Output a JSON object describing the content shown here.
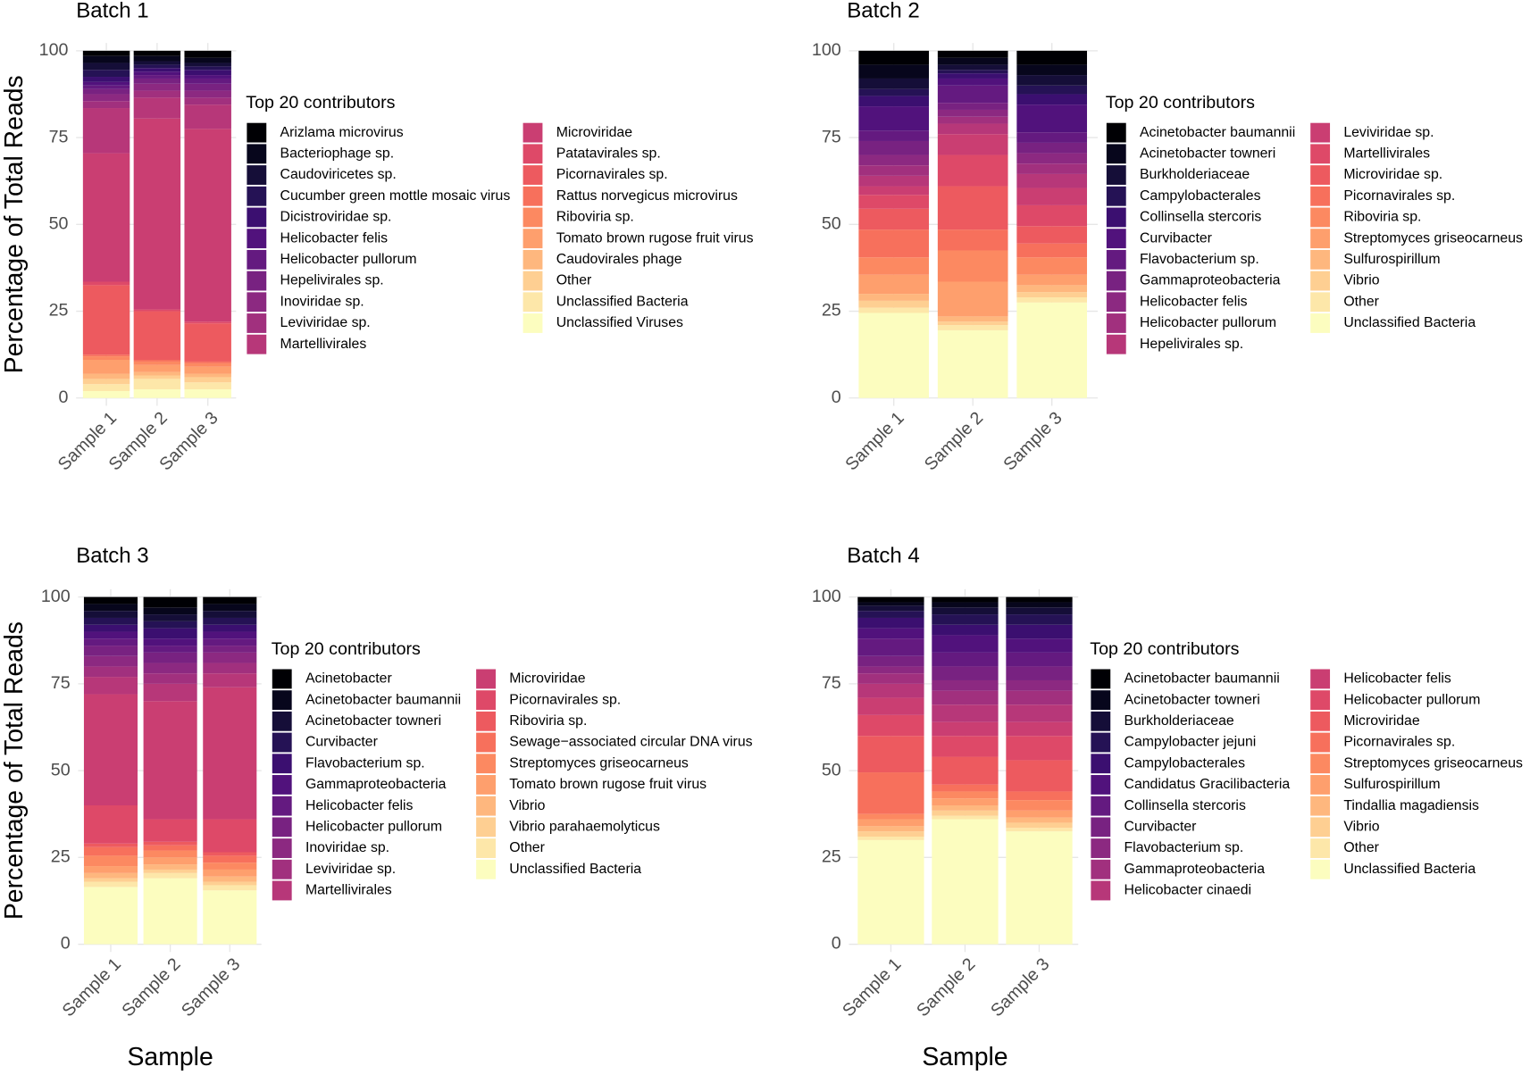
{
  "chart_data": [
    {
      "type": "bar",
      "stacked": true,
      "title": "Batch 1",
      "ylabel": "Percentage of Total Reads",
      "legend_title": "Top 20 contributors",
      "legend": "right",
      "categories": [
        "Sample 1",
        "Sample 2",
        "Sample 3"
      ],
      "ylim": [
        0,
        100
      ],
      "yticks": [
        0,
        25,
        50,
        75,
        100
      ],
      "grid": true,
      "series": [
        {
          "name": "Arizlama microvirus",
          "color": "#000004",
          "values": [
            1.5,
            1.5,
            2
          ]
        },
        {
          "name": "Bacteriophage sp.",
          "color": "#07061c",
          "values": [
            2,
            1.5,
            1.5
          ]
        },
        {
          "name": "Caudoviricetes sp.",
          "color": "#150e38",
          "values": [
            2,
            1,
            1
          ]
        },
        {
          "name": "Cucumber green mottle mosaic virus",
          "color": "#251255",
          "values": [
            2,
            1,
            1
          ]
        },
        {
          "name": "Dicistroviridae sp.",
          "color": "#3b0f70",
          "values": [
            1.5,
            1,
            1.5
          ]
        },
        {
          "name": "Helicobacter felis",
          "color": "#51127c",
          "values": [
            1,
            1,
            1
          ]
        },
        {
          "name": "Helicobacter pullorum",
          "color": "#641a80",
          "values": [
            1,
            1,
            1.5
          ]
        },
        {
          "name": "Hepelivirales sp.",
          "color": "#782281",
          "values": [
            1.5,
            1.5,
            2
          ]
        },
        {
          "name": "Inoviridae sp.",
          "color": "#8c2981",
          "values": [
            2,
            2,
            2
          ]
        },
        {
          "name": "Leviviridae sp.",
          "color": "#a1307e",
          "values": [
            2,
            2,
            2
          ]
        },
        {
          "name": "Martellivirales",
          "color": "#b73779",
          "values": [
            13,
            6,
            7
          ]
        },
        {
          "name": "Microviridae",
          "color": "#ca3e72",
          "values": [
            37,
            55,
            55.5
          ]
        },
        {
          "name": "Patatavirales sp.",
          "color": "#de4968",
          "values": [
            1,
            0.5,
            0.5
          ]
        },
        {
          "name": "Picornavirales sp.",
          "color": "#ed5a5f",
          "values": [
            20,
            14,
            11
          ]
        },
        {
          "name": "Rattus norvegicus microvirus",
          "color": "#f7705c",
          "values": [
            0.5,
            0.5,
            0.5
          ]
        },
        {
          "name": "Riboviria sp.",
          "color": "#fc8961",
          "values": [
            1,
            1,
            1
          ]
        },
        {
          "name": "Tomato brown rugose fruit virus",
          "color": "#fe9f6d",
          "values": [
            4,
            2,
            2
          ]
        },
        {
          "name": "Caudovirales phage",
          "color": "#feb77e",
          "values": [
            1.5,
            1,
            1
          ]
        },
        {
          "name": "Other",
          "color": "#fecf92",
          "values": [
            1.5,
            1,
            1.5
          ]
        },
        {
          "name": "Unclassified Bacteria",
          "color": "#fde7a9",
          "values": [
            2,
            3,
            2
          ]
        },
        {
          "name": "Unclassified Viruses",
          "color": "#fcfdbf",
          "values": [
            2,
            2.5,
            2.5
          ]
        }
      ]
    },
    {
      "type": "bar",
      "stacked": true,
      "title": "Batch 2",
      "legend_title": "Top 20 contributors",
      "legend": "right",
      "categories": [
        "Sample 1",
        "Sample 2",
        "Sample 3"
      ],
      "ylim": [
        0,
        100
      ],
      "yticks": [
        0,
        25,
        50,
        75,
        100
      ],
      "grid": true,
      "series": [
        {
          "name": "Acinetobacter baumannii",
          "color": "#000004",
          "values": [
            4,
            2,
            4
          ]
        },
        {
          "name": "Acinetobacter towneri",
          "color": "#07061c",
          "values": [
            4,
            2,
            3
          ]
        },
        {
          "name": "Burkholderiaceae",
          "color": "#150e38",
          "values": [
            3,
            1.5,
            3
          ]
        },
        {
          "name": "Campylobacterales",
          "color": "#251255",
          "values": [
            2,
            1,
            2.5
          ]
        },
        {
          "name": "Collinsella stercoris",
          "color": "#3b0f70",
          "values": [
            3,
            1.5,
            3
          ]
        },
        {
          "name": "Curvibacter",
          "color": "#51127c",
          "values": [
            7,
            2,
            8
          ]
        },
        {
          "name": "Flavobacterium sp.",
          "color": "#641a80",
          "values": [
            3,
            5,
            3
          ]
        },
        {
          "name": "Gammaproteobacteria",
          "color": "#782281",
          "values": [
            4,
            2,
            3
          ]
        },
        {
          "name": "Helicobacter felis",
          "color": "#8c2981",
          "values": [
            3,
            2,
            3
          ]
        },
        {
          "name": "Helicobacter pullorum",
          "color": "#a1307e",
          "values": [
            3,
            2,
            3
          ]
        },
        {
          "name": "Hepelivirales sp.",
          "color": "#b73779",
          "values": [
            3,
            3,
            4
          ]
        },
        {
          "name": "Leviviridae sp.",
          "color": "#ca3e72",
          "values": [
            2.5,
            6,
            5
          ]
        },
        {
          "name": "Martellivirales",
          "color": "#de4968",
          "values": [
            4,
            9,
            6
          ]
        },
        {
          "name": "Microviridae sp.",
          "color": "#ed5a5f",
          "values": [
            6,
            12.5,
            5
          ]
        },
        {
          "name": "Picornavirales sp.",
          "color": "#f7705c",
          "values": [
            8,
            6,
            4
          ]
        },
        {
          "name": "Riboviria sp.",
          "color": "#fc8961",
          "values": [
            5,
            9,
            5
          ]
        },
        {
          "name": "Streptomyces griseocarneus",
          "color": "#fe9f6d",
          "values": [
            5.5,
            10,
            3
          ]
        },
        {
          "name": "Sulfurospirillum",
          "color": "#feb77e",
          "values": [
            2,
            1.5,
            2
          ]
        },
        {
          "name": "Vibrio",
          "color": "#fecf92",
          "values": [
            2,
            1,
            1.5
          ]
        },
        {
          "name": "Other",
          "color": "#fde7a9",
          "values": [
            1.5,
            1.5,
            1.5
          ]
        },
        {
          "name": "Unclassified Bacteria",
          "color": "#fcfdbf",
          "values": [
            24.5,
            19.5,
            27.5
          ]
        }
      ]
    },
    {
      "type": "bar",
      "stacked": true,
      "title": "Batch 3",
      "ylabel": "Percentage of Total Reads",
      "xlabel": "Sample",
      "legend_title": "Top 20 contributors",
      "legend": "right",
      "categories": [
        "Sample 1",
        "Sample 2",
        "Sample 3"
      ],
      "ylim": [
        0,
        100
      ],
      "yticks": [
        0,
        25,
        50,
        75,
        100
      ],
      "grid": true,
      "series": [
        {
          "name": "Acinetobacter",
          "color": "#000004",
          "values": [
            2,
            3,
            2
          ]
        },
        {
          "name": "Acinetobacter baumannii",
          "color": "#07061c",
          "values": [
            2,
            2,
            2
          ]
        },
        {
          "name": "Acinetobacter towneri",
          "color": "#150e38",
          "values": [
            2,
            2,
            2
          ]
        },
        {
          "name": "Curvibacter",
          "color": "#251255",
          "values": [
            2,
            2,
            2
          ]
        },
        {
          "name": "Flavobacterium sp.",
          "color": "#3b0f70",
          "values": [
            2,
            3,
            2
          ]
        },
        {
          "name": "Gammaproteobacteria",
          "color": "#51127c",
          "values": [
            2,
            2,
            2
          ]
        },
        {
          "name": "Helicobacter felis",
          "color": "#641a80",
          "values": [
            2,
            2,
            2
          ]
        },
        {
          "name": "Helicobacter pullorum",
          "color": "#782281",
          "values": [
            3,
            3,
            2
          ]
        },
        {
          "name": "Inoviridae sp.",
          "color": "#8c2981",
          "values": [
            3,
            3,
            3
          ]
        },
        {
          "name": "Leviviridae sp.",
          "color": "#a1307e",
          "values": [
            3,
            3,
            3
          ]
        },
        {
          "name": "Martellivirales",
          "color": "#b73779",
          "values": [
            5,
            5,
            4
          ]
        },
        {
          "name": "Microviridae",
          "color": "#ca3e72",
          "values": [
            32,
            34,
            38
          ]
        },
        {
          "name": "Picornavirales sp.",
          "color": "#de4968",
          "values": [
            11,
            6.5,
            9.5
          ]
        },
        {
          "name": "Riboviria sp.",
          "color": "#ed5a5f",
          "values": [
            1,
            1,
            1
          ]
        },
        {
          "name": "Sewage−associated circular DNA virus",
          "color": "#f7705c",
          "values": [
            2.5,
            1.5,
            2
          ]
        },
        {
          "name": "Streptomyces griseocarneus",
          "color": "#fc8961",
          "values": [
            3,
            2,
            2
          ]
        },
        {
          "name": "Tomato brown rugose fruit virus",
          "color": "#fe9f6d",
          "values": [
            2,
            2,
            2
          ]
        },
        {
          "name": "Vibrio",
          "color": "#feb77e",
          "values": [
            1.5,
            1.5,
            1.5
          ]
        },
        {
          "name": "Vibrio parahaemolyticus",
          "color": "#fecf92",
          "values": [
            1,
            1,
            1
          ]
        },
        {
          "name": "Other",
          "color": "#fde7a9",
          "values": [
            1.5,
            1.5,
            1.5
          ]
        },
        {
          "name": "Unclassified Bacteria",
          "color": "#fcfdbf",
          "values": [
            16.5,
            19,
            15.5
          ]
        }
      ]
    },
    {
      "type": "bar",
      "stacked": true,
      "title": "Batch 4",
      "xlabel": "Sample",
      "legend_title": "Top 20 contributors",
      "legend": "right",
      "categories": [
        "Sample 1",
        "Sample 2",
        "Sample 3"
      ],
      "ylim": [
        0,
        100
      ],
      "yticks": [
        0,
        25,
        50,
        75,
        100
      ],
      "grid": true,
      "series": [
        {
          "name": "Acinetobacter baumannii",
          "color": "#000004",
          "values": [
            1.5,
            1.5,
            1.5
          ]
        },
        {
          "name": "Acinetobacter towneri",
          "color": "#07061c",
          "values": [
            1,
            1.5,
            1.5
          ]
        },
        {
          "name": "Burkholderiaceae",
          "color": "#150e38",
          "values": [
            1.5,
            2,
            2
          ]
        },
        {
          "name": "Campylobacter jejuni",
          "color": "#251255",
          "values": [
            2,
            3,
            3
          ]
        },
        {
          "name": "Campylobacterales",
          "color": "#3b0f70",
          "values": [
            3,
            3,
            4
          ]
        },
        {
          "name": "Candidatus Gracilibacteria",
          "color": "#51127c",
          "values": [
            3,
            5,
            4
          ]
        },
        {
          "name": "Collinsella stercoris",
          "color": "#641a80",
          "values": [
            5,
            4,
            4
          ]
        },
        {
          "name": "Curvibacter",
          "color": "#782281",
          "values": [
            3,
            4,
            4
          ]
        },
        {
          "name": "Flavobacterium sp.",
          "color": "#8c2981",
          "values": [
            2,
            3,
            3
          ]
        },
        {
          "name": "Gammaproteobacteria",
          "color": "#a1307e",
          "values": [
            3,
            4,
            4
          ]
        },
        {
          "name": "Helicobacter cinaedi",
          "color": "#b73779",
          "values": [
            4,
            5,
            5
          ]
        },
        {
          "name": "Helicobacter felis",
          "color": "#ca3e72",
          "values": [
            5,
            4,
            4
          ]
        },
        {
          "name": "Helicobacter pullorum",
          "color": "#de4968",
          "values": [
            6,
            6,
            7
          ]
        },
        {
          "name": "Microviridae",
          "color": "#ed5a5f",
          "values": [
            10.5,
            8,
            9
          ]
        },
        {
          "name": "Picornavirales sp.",
          "color": "#f7705c",
          "values": [
            12,
            2,
            2.5
          ]
        },
        {
          "name": "Streptomyces griseocarneus",
          "color": "#fc8961",
          "values": [
            1.5,
            2,
            3
          ]
        },
        {
          "name": "Sulfurospirillum",
          "color": "#fe9f6d",
          "values": [
            2,
            2,
            2
          ]
        },
        {
          "name": "Tindallia magadiensis",
          "color": "#feb77e",
          "values": [
            1.5,
            1.5,
            1.5
          ]
        },
        {
          "name": "Vibrio",
          "color": "#fecf92",
          "values": [
            1.5,
            1.5,
            1.5
          ]
        },
        {
          "name": "Other",
          "color": "#fde7a9",
          "values": [
            1,
            1,
            1
          ]
        },
        {
          "name": "Unclassified Bacteria",
          "color": "#fcfdbf",
          "values": [
            30,
            36,
            32.5
          ]
        }
      ]
    }
  ]
}
